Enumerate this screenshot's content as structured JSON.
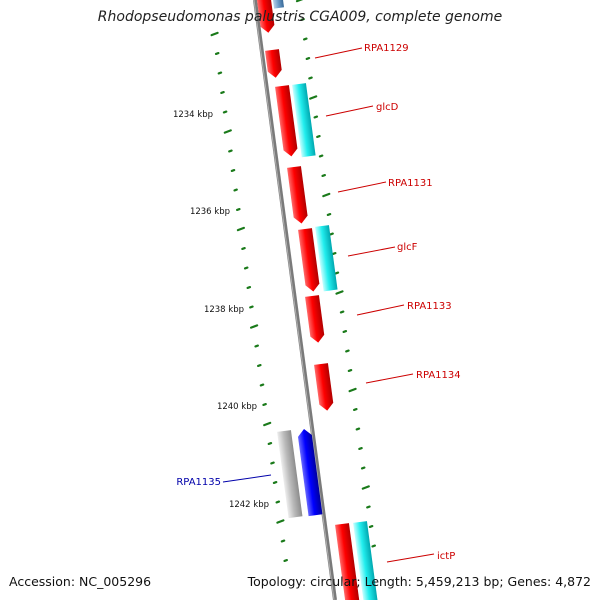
{
  "title": "Rhodopseudomonas palustris CGA009, complete genome",
  "footer": {
    "accession": "Accession: NC_005296",
    "topology": "Topology: circular; Length: 5,459,213 bp; Genes: 4,872"
  },
  "colors": {
    "backbone": "#808080",
    "tick": "#1a7a1a",
    "forward_cds": "#ff0000",
    "forward_feature": "#00e5ee",
    "reverse_cds": "#0000ff",
    "reverse_feature": "#b4b4b4",
    "forward_label": "#cc0000",
    "reverse_label": "#0000aa"
  },
  "scale_labels": [
    "1234 kbp",
    "1236 kbp",
    "1238 kbp",
    "1240 kbp",
    "1242 kbp"
  ],
  "gene_labels": [
    {
      "text": "RPA1129",
      "strand": "forward"
    },
    {
      "text": "glcD",
      "strand": "forward"
    },
    {
      "text": "RPA1131",
      "strand": "forward"
    },
    {
      "text": "glcF",
      "strand": "forward"
    },
    {
      "text": "RPA1133",
      "strand": "forward"
    },
    {
      "text": "RPA1134",
      "strand": "forward"
    },
    {
      "text": "RPA1135",
      "strand": "reverse"
    },
    {
      "text": "ictP",
      "strand": "forward"
    }
  ]
}
